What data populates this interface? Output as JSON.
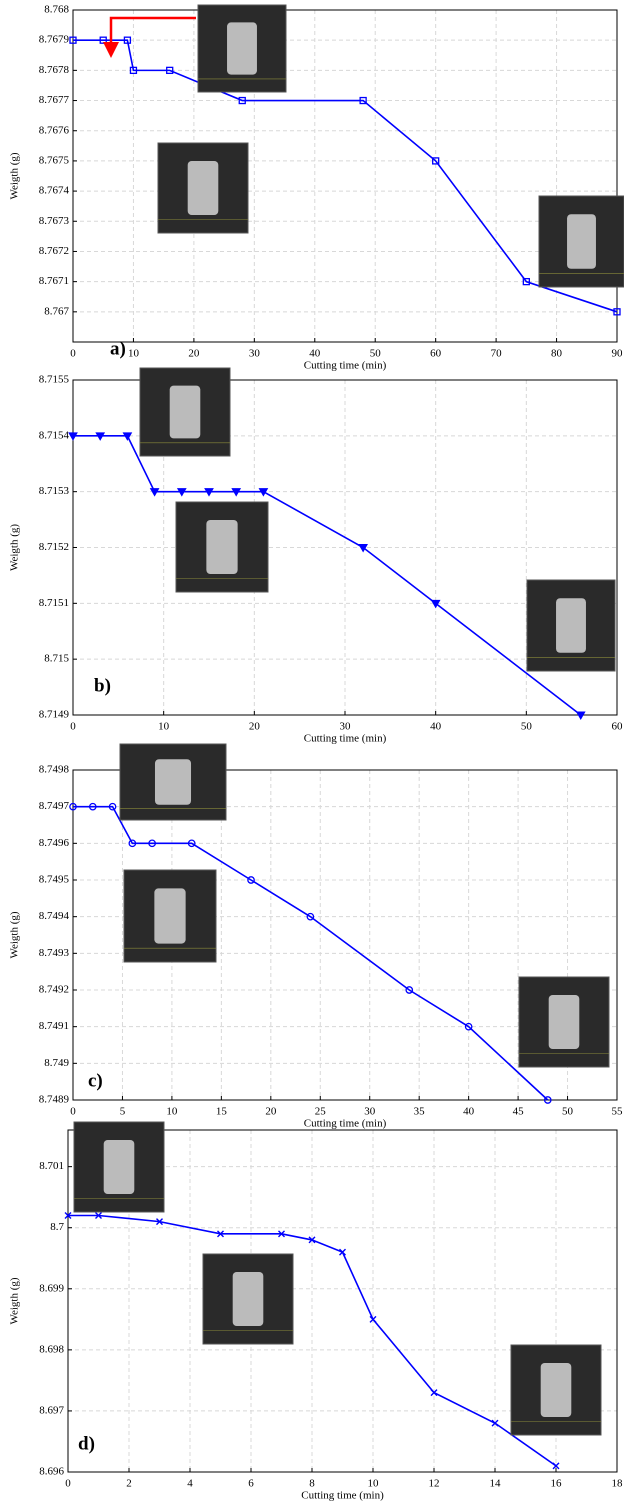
{
  "chart_data": [
    {
      "type": "line",
      "annotation": "a)",
      "xlabel": "Cutting time (min)",
      "ylabel": "Weigth (g)",
      "color": "#0000ff",
      "marker": "square",
      "grid": true,
      "x": [
        0,
        5,
        9,
        10,
        16,
        28,
        48,
        60,
        75,
        90
      ],
      "values": [
        8.7679,
        8.7679,
        8.7679,
        8.7678,
        8.7678,
        8.7677,
        8.7677,
        8.7675,
        8.7671,
        8.767
      ],
      "xlim": [
        0,
        90
      ],
      "xticks": [
        0,
        10,
        20,
        30,
        40,
        50,
        60,
        70,
        80,
        90
      ],
      "ylim": [
        8.7669,
        8.768
      ],
      "yticks": [
        8.767,
        8.7671,
        8.7672,
        8.7673,
        8.7674,
        8.7675,
        8.7676,
        8.7677,
        8.7678,
        8.7679,
        8.768
      ]
    },
    {
      "type": "line",
      "annotation": "b)",
      "xlabel": "Cutting time (min)",
      "ylabel": "Weigth (g)",
      "color": "#0000ff",
      "marker": "triangle-down",
      "grid": true,
      "x": [
        0,
        3,
        6,
        9,
        12,
        15,
        18,
        21,
        32,
        40,
        56
      ],
      "values": [
        8.7154,
        8.7154,
        8.7154,
        8.7153,
        8.7153,
        8.7153,
        8.7153,
        8.7153,
        8.7152,
        8.7151,
        8.7149
      ],
      "xlim": [
        0,
        60
      ],
      "xticks": [
        0,
        10,
        20,
        30,
        40,
        50,
        60
      ],
      "ylim": [
        8.7149,
        8.7155
      ],
      "yticks": [
        8.7149,
        8.715,
        8.7151,
        8.7152,
        8.7153,
        8.7154,
        8.7155
      ]
    },
    {
      "type": "line",
      "annotation": "c)",
      "xlabel": "Cutting time (min)",
      "ylabel": "Weigth (g)",
      "color": "#0000ff",
      "marker": "circle",
      "grid": true,
      "x": [
        0,
        2,
        4,
        6,
        8,
        12,
        18,
        24,
        34,
        40,
        48
      ],
      "values": [
        8.7497,
        8.7497,
        8.7497,
        8.7496,
        8.7496,
        8.7496,
        8.7495,
        8.7494,
        8.7492,
        8.7491,
        8.7489
      ],
      "xlim": [
        0,
        55
      ],
      "xticks": [
        0,
        5,
        10,
        15,
        20,
        25,
        30,
        35,
        40,
        45,
        50,
        55
      ],
      "ylim": [
        8.7489,
        8.7498
      ],
      "yticks": [
        8.7489,
        8.749,
        8.7491,
        8.7492,
        8.7493,
        8.7494,
        8.7495,
        8.7496,
        8.7497,
        8.7498
      ]
    },
    {
      "type": "line",
      "annotation": "d)",
      "xlabel": "Cutting time (min)",
      "ylabel": "Weigth (g)",
      "color": "#0000ff",
      "marker": "x",
      "grid": true,
      "x": [
        0,
        1,
        3,
        5,
        7,
        8,
        9,
        10,
        12,
        14,
        16
      ],
      "values": [
        8.7002,
        8.7002,
        8.7001,
        8.6999,
        8.6999,
        8.6998,
        8.6996,
        8.6985,
        8.6973,
        8.6968,
        8.6961
      ],
      "xlim": [
        0,
        18
      ],
      "xticks": [
        0,
        2,
        4,
        6,
        8,
        10,
        12,
        14,
        16,
        18
      ],
      "ylim": [
        8.696,
        8.7016
      ],
      "yticks": [
        8.696,
        8.697,
        8.698,
        8.699,
        8.7,
        8.701
      ]
    }
  ]
}
